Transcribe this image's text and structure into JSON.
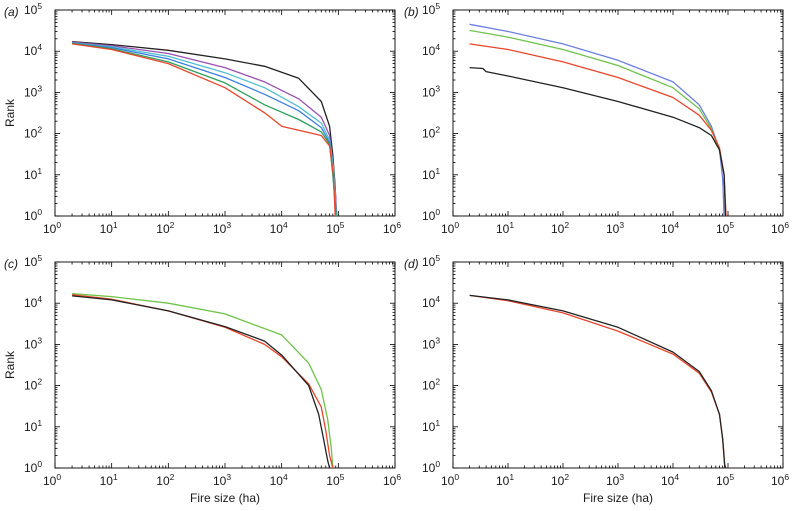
{
  "chart_data": [
    {
      "type": "line",
      "panel_label": "(a)",
      "xlabel": "",
      "ylabel": "Rank",
      "xscale": "log",
      "yscale": "log",
      "xlim": [
        1,
        1000000
      ],
      "ylim": [
        1,
        100000
      ],
      "x_ticks": [
        "10",
        "10",
        "10",
        "10",
        "10",
        "10",
        "10"
      ],
      "x_tick_exponents": [
        "0",
        "1",
        "2",
        "3",
        "4",
        "5",
        "6"
      ],
      "y_ticks": [
        "10",
        "10",
        "10",
        "10",
        "10",
        "10"
      ],
      "y_tick_exponents": [
        "0",
        "1",
        "2",
        "3",
        "4",
        "5"
      ],
      "series": [
        {
          "color": "#222222",
          "points": [
            [
              2,
              17000
            ],
            [
              10,
              14500
            ],
            [
              100,
              10500
            ],
            [
              1000,
              6500
            ],
            [
              5000,
              4300
            ],
            [
              20000,
              2200
            ],
            [
              50000,
              600
            ],
            [
              70000,
              150
            ],
            [
              80000,
              30
            ],
            [
              88000,
              5
            ],
            [
              92000,
              1
            ]
          ]
        },
        {
          "color": "#9a4fb0",
          "points": [
            [
              2,
              16500
            ],
            [
              10,
              13500
            ],
            [
              100,
              8800
            ],
            [
              1000,
              4000
            ],
            [
              5000,
              1800
            ],
            [
              20000,
              700
            ],
            [
              50000,
              250
            ],
            [
              70000,
              90
            ],
            [
              80000,
              20
            ],
            [
              90000,
              3
            ],
            [
              94000,
              1
            ]
          ]
        },
        {
          "color": "#4fbfd0",
          "points": [
            [
              2,
              16000
            ],
            [
              10,
              12800
            ],
            [
              100,
              7500
            ],
            [
              1000,
              3000
            ],
            [
              5000,
              1300
            ],
            [
              20000,
              450
            ],
            [
              50000,
              180
            ],
            [
              70000,
              70
            ],
            [
              82000,
              15
            ],
            [
              90000,
              2
            ],
            [
              92000,
              1
            ]
          ]
        },
        {
          "color": "#3b7fe0",
          "points": [
            [
              2,
              15800
            ],
            [
              10,
              12200
            ],
            [
              100,
              6500
            ],
            [
              1000,
              2300
            ],
            [
              5000,
              900
            ],
            [
              20000,
              360
            ],
            [
              50000,
              140
            ],
            [
              70000,
              60
            ],
            [
              80000,
              12
            ],
            [
              88000,
              2
            ],
            [
              90000,
              1
            ]
          ]
        },
        {
          "color": "#2e9e5a",
          "points": [
            [
              2,
              15500
            ],
            [
              10,
              11500
            ],
            [
              100,
              5500
            ],
            [
              1000,
              1700
            ],
            [
              5000,
              500
            ],
            [
              20000,
              220
            ],
            [
              50000,
              110
            ],
            [
              70000,
              55
            ],
            [
              80000,
              10
            ],
            [
              88000,
              2
            ],
            [
              91000,
              1
            ]
          ]
        },
        {
          "color": "#e8462a",
          "points": [
            [
              2,
              15000
            ],
            [
              10,
              11000
            ],
            [
              100,
              5000
            ],
            [
              1000,
              1300
            ],
            [
              5000,
              320
            ],
            [
              10000,
              150
            ],
            [
              20000,
              120
            ],
            [
              50000,
              90
            ],
            [
              70000,
              50
            ],
            [
              82000,
              10
            ],
            [
              88000,
              1
            ]
          ]
        }
      ]
    },
    {
      "type": "line",
      "panel_label": "(b)",
      "xlabel": "",
      "ylabel": "",
      "xscale": "log",
      "yscale": "log",
      "xlim": [
        1,
        1000000
      ],
      "ylim": [
        1,
        100000
      ],
      "x_ticks": [
        "10",
        "10",
        "10",
        "10",
        "10",
        "10",
        "10"
      ],
      "x_tick_exponents": [
        "0",
        "1",
        "2",
        "3",
        "4",
        "5",
        "6"
      ],
      "y_ticks": [
        "10",
        "10",
        "10",
        "10",
        "10",
        "10"
      ],
      "y_tick_exponents": [
        "0",
        "1",
        "2",
        "3",
        "4",
        "5"
      ],
      "series": [
        {
          "color": "#6b7fe0",
          "points": [
            [
              2,
              45000
            ],
            [
              10,
              30000
            ],
            [
              100,
              15000
            ],
            [
              1000,
              6000
            ],
            [
              10000,
              1800
            ],
            [
              30000,
              500
            ],
            [
              50000,
              150
            ],
            [
              70000,
              40
            ],
            [
              80000,
              8
            ],
            [
              85000,
              1
            ]
          ]
        },
        {
          "color": "#6fc24a",
          "points": [
            [
              2,
              32000
            ],
            [
              10,
              22000
            ],
            [
              100,
              11000
            ],
            [
              1000,
              4500
            ],
            [
              10000,
              1300
            ],
            [
              30000,
              400
            ],
            [
              50000,
              130
            ],
            [
              70000,
              40
            ],
            [
              85000,
              10
            ],
            [
              92000,
              1
            ]
          ]
        },
        {
          "color": "#e8462a",
          "points": [
            [
              2,
              15000
            ],
            [
              10,
              11000
            ],
            [
              100,
              5500
            ],
            [
              1000,
              2300
            ],
            [
              10000,
              750
            ],
            [
              30000,
              280
            ],
            [
              50000,
              120
            ],
            [
              70000,
              45
            ],
            [
              85000,
              10
            ],
            [
              92000,
              1
            ]
          ]
        },
        {
          "color": "#222222",
          "points": [
            [
              2,
              4000
            ],
            [
              3.5,
              3800
            ],
            [
              4,
              3200
            ],
            [
              10,
              2500
            ],
            [
              100,
              1300
            ],
            [
              1000,
              600
            ],
            [
              10000,
              250
            ],
            [
              30000,
              140
            ],
            [
              50000,
              90
            ],
            [
              70000,
              40
            ],
            [
              85000,
              10
            ],
            [
              90000,
              1
            ]
          ]
        }
      ]
    },
    {
      "type": "line",
      "panel_label": "(c)",
      "xlabel": "Fire size (ha)",
      "ylabel": "Rank",
      "xscale": "log",
      "yscale": "log",
      "xlim": [
        1,
        1000000
      ],
      "ylim": [
        1,
        100000
      ],
      "x_ticks": [
        "10",
        "10",
        "10",
        "10",
        "10",
        "10",
        "10"
      ],
      "x_tick_exponents": [
        "0",
        "1",
        "2",
        "3",
        "4",
        "5",
        "6"
      ],
      "y_ticks": [
        "10",
        "10",
        "10",
        "10",
        "10",
        "10"
      ],
      "y_tick_exponents": [
        "0",
        "1",
        "2",
        "3",
        "4",
        "5"
      ],
      "series": [
        {
          "color": "#6fc24a",
          "points": [
            [
              2,
              17000
            ],
            [
              10,
              14500
            ],
            [
              100,
              10000
            ],
            [
              1000,
              5500
            ],
            [
              10000,
              1700
            ],
            [
              30000,
              350
            ],
            [
              50000,
              80
            ],
            [
              65000,
              15
            ],
            [
              75000,
              3
            ],
            [
              80000,
              1
            ]
          ]
        },
        {
          "color": "#e8462a",
          "points": [
            [
              2,
              16000
            ],
            [
              10,
              12500
            ],
            [
              100,
              6500
            ],
            [
              1000,
              2600
            ],
            [
              5000,
              1000
            ],
            [
              10000,
              500
            ],
            [
              30000,
              110
            ],
            [
              50000,
              30
            ],
            [
              60000,
              8
            ],
            [
              70000,
              2
            ],
            [
              80000,
              1
            ]
          ]
        },
        {
          "color": "#222222",
          "points": [
            [
              2,
              15000
            ],
            [
              10,
              12000
            ],
            [
              100,
              6500
            ],
            [
              1000,
              2700
            ],
            [
              5000,
              1200
            ],
            [
              10000,
              550
            ],
            [
              30000,
              100
            ],
            [
              45000,
              20
            ],
            [
              55000,
              5
            ],
            [
              65000,
              1.5
            ],
            [
              70000,
              1
            ]
          ]
        }
      ]
    },
    {
      "type": "line",
      "panel_label": "(d)",
      "xlabel": "Fire size (ha)",
      "ylabel": "",
      "xscale": "log",
      "yscale": "log",
      "xlim": [
        1,
        1000000
      ],
      "ylim": [
        1,
        100000
      ],
      "x_ticks": [
        "10",
        "10",
        "10",
        "10",
        "10",
        "10",
        "10"
      ],
      "x_tick_exponents": [
        "0",
        "1",
        "2",
        "3",
        "4",
        "5",
        "6"
      ],
      "y_ticks": [
        "10",
        "10",
        "10",
        "10",
        "10",
        "10"
      ],
      "y_tick_exponents": [
        "0",
        "1",
        "2",
        "3",
        "4",
        "5"
      ],
      "series": [
        {
          "color": "#e8462a",
          "points": [
            [
              2,
              15500
            ],
            [
              10,
              11500
            ],
            [
              100,
              5800
            ],
            [
              1000,
              2100
            ],
            [
              10000,
              580
            ],
            [
              30000,
              200
            ],
            [
              50000,
              70
            ],
            [
              70000,
              20
            ],
            [
              80000,
              5
            ],
            [
              88000,
              1
            ]
          ]
        },
        {
          "color": "#222222",
          "points": [
            [
              2,
              15500
            ],
            [
              10,
              12000
            ],
            [
              100,
              6500
            ],
            [
              1000,
              2600
            ],
            [
              10000,
              650
            ],
            [
              30000,
              220
            ],
            [
              50000,
              75
            ],
            [
              70000,
              20
            ],
            [
              80000,
              5
            ],
            [
              88000,
              1
            ]
          ]
        }
      ]
    }
  ]
}
